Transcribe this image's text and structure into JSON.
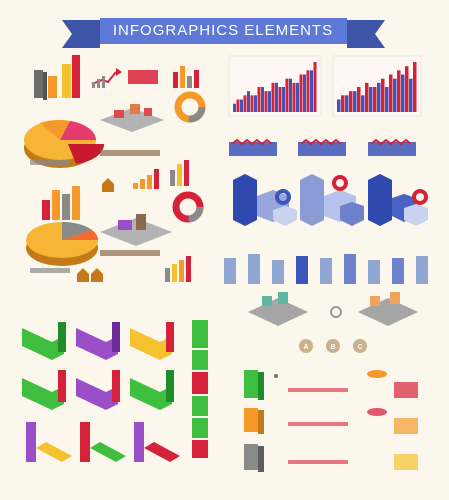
{
  "banner": {
    "title": "INFOGRAPHICS   ELEMENTS",
    "ribbon_color": "#5d78d6",
    "ribbon_fold_color": "#3f55a8"
  },
  "palette": {
    "red": "#d6213a",
    "orange": "#f59a2a",
    "yellow": "#f6c12f",
    "gray": "#8a8a8a",
    "blue": "#3b55b8",
    "green": "#3fbf3f",
    "purple": "#9a4fc9",
    "brown": "#8a6a4e",
    "paper": "#fbf7ec"
  },
  "badges": [
    "A",
    "B",
    "C"
  ],
  "chart_data": [
    {
      "type": "bar",
      "series": [
        {
          "values": [
            2,
            3,
            5,
            4,
            6,
            5,
            7,
            6,
            8,
            7,
            9,
            10
          ]
        },
        {
          "values": [
            3,
            4,
            4,
            6,
            5,
            7,
            6,
            8,
            7,
            9,
            10,
            12
          ]
        }
      ]
    },
    {
      "type": "bar",
      "series": [
        {
          "values": [
            3,
            4,
            5,
            4,
            6,
            7,
            6,
            8,
            9,
            8
          ]
        },
        {
          "values": [
            4,
            5,
            6,
            7,
            6,
            8,
            9,
            10,
            11,
            12
          ]
        }
      ]
    }
  ],
  "icons": {
    "banner": "ribbon-icon",
    "pie": "pie-chart-icon",
    "donut": "donut-chart-icon",
    "house": "house-icon",
    "person": "person-icon",
    "coin": "coin-icon",
    "arrow": "growth-arrow-icon",
    "building": "building-icon"
  }
}
